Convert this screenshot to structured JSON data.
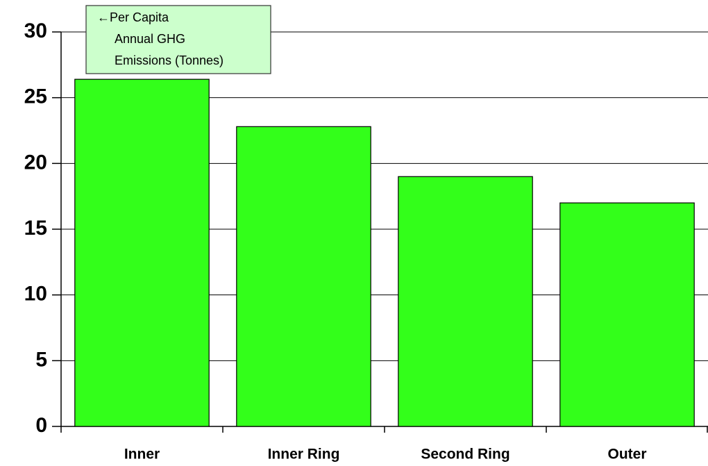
{
  "chart_data": {
    "type": "bar",
    "annotation": [
      "←Per Capita",
      "Annual GHG",
      "Emissions (Tonnes)"
    ],
    "categories": [
      "Inner",
      "Inner Ring",
      "Second Ring",
      "Outer"
    ],
    "values": [
      26.4,
      22.8,
      19.0,
      17.0
    ],
    "color": "#33ff1a",
    "ylim": [
      0,
      30
    ],
    "yticks": [
      0,
      5,
      10,
      15,
      20,
      25,
      30
    ],
    "grid": true
  }
}
